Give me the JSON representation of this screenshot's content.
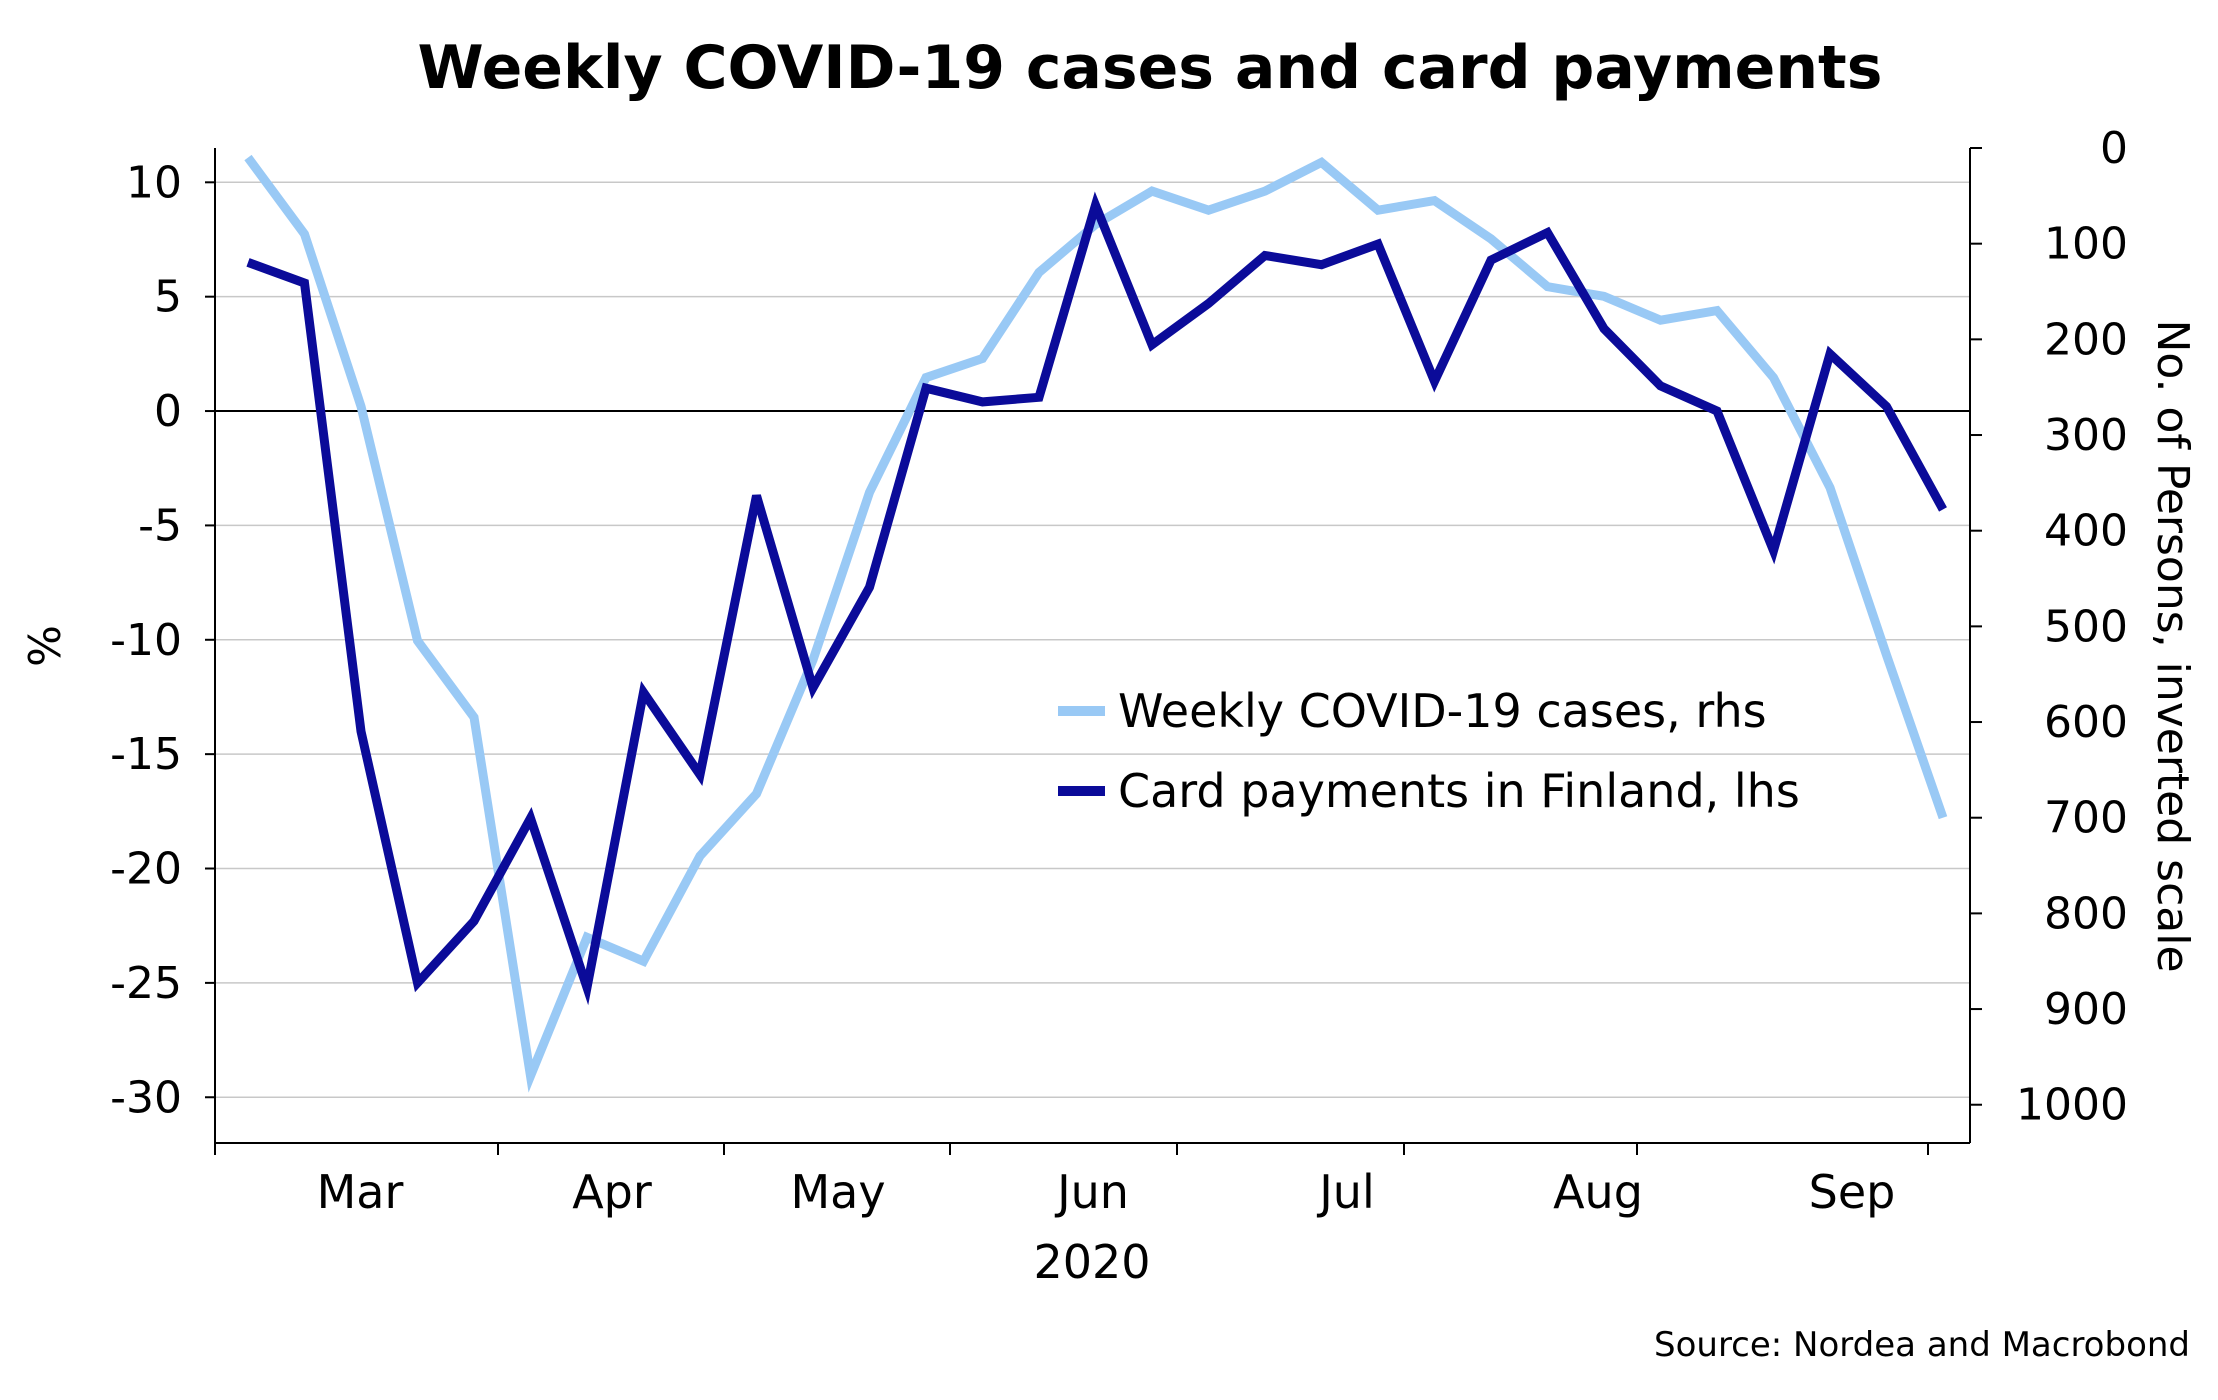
{
  "chart_data": {
    "type": "line",
    "title": "Weekly COVID-19 cases and card payments",
    "source": "Source: Nordea and Macrobond",
    "xlabel": "2020",
    "ylabel_left": "%",
    "ylabel_right": "No. of Persons, inverted scale",
    "x_ticks": [
      "Mar",
      "Apr",
      "May",
      "Jun",
      "Jul",
      "Aug",
      "Sep"
    ],
    "y_left": {
      "min": -32,
      "max": 11.5,
      "ticks": [
        10,
        5,
        0,
        -5,
        -10,
        -15,
        -20,
        -25,
        -30
      ]
    },
    "y_right": {
      "min": 0,
      "max": 1040,
      "inverted": true,
      "ticks": [
        0,
        100,
        200,
        300,
        400,
        500,
        600,
        700,
        800,
        900,
        1000
      ]
    },
    "grid": true,
    "legend_position": "center-right",
    "weeks": 31,
    "series": [
      {
        "name": "Weekly COVID-19 cases, rhs",
        "axis": "right",
        "color": "#99c9f5",
        "values": [
          10,
          90,
          270,
          515,
          595,
          970,
          825,
          850,
          740,
          675,
          535,
          360,
          240,
          220,
          130,
          80,
          45,
          65,
          45,
          15,
          65,
          55,
          95,
          145,
          155,
          180,
          170,
          240,
          355,
          530,
          700
        ]
      },
      {
        "name": "Card payments in Finland, lhs",
        "axis": "left",
        "color": "#0b0b99",
        "values": [
          6.5,
          5.6,
          -14,
          -25,
          -22.3,
          -17.8,
          -25.2,
          -12.3,
          -15.9,
          -3.7,
          -12.1,
          -7.7,
          1,
          0.4,
          0.6,
          9,
          2.9,
          4.7,
          6.8,
          6.4,
          7.3,
          1.3,
          6.6,
          7.8,
          3.6,
          1.1,
          0,
          -6.1,
          2.5,
          0.2,
          -4.3
        ]
      }
    ]
  }
}
